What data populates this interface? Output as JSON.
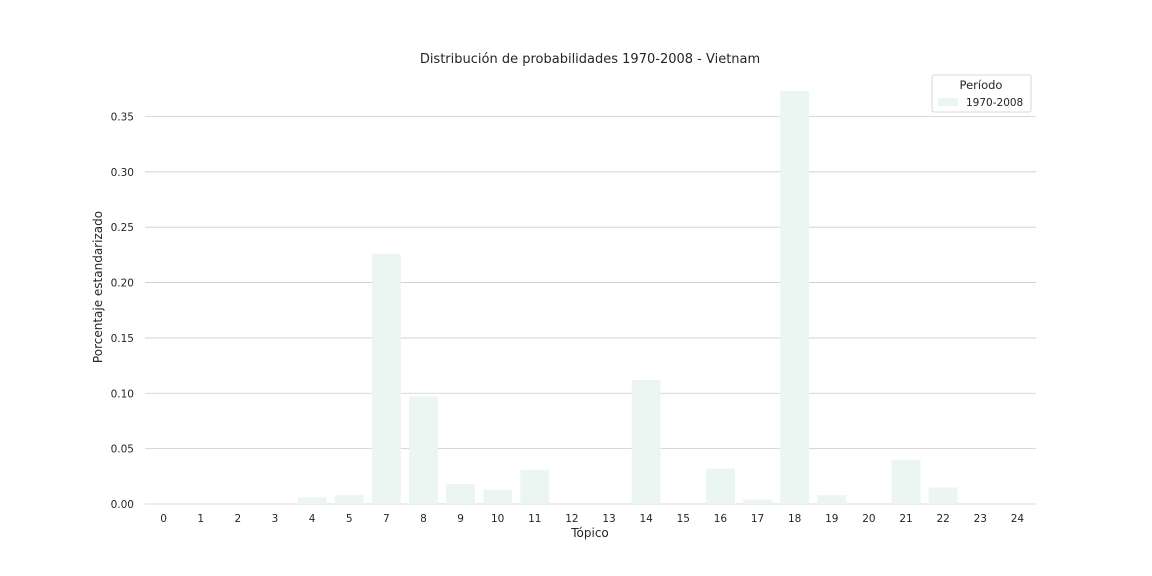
{
  "chart_data": {
    "type": "bar",
    "title": "Distribución de probabilidades 1970-2008 - Vietnam",
    "xlabel": "Tópico",
    "ylabel": "Porcentaje estandarizado",
    "categories": [
      "0",
      "1",
      "2",
      "3",
      "4",
      "5",
      "7",
      "8",
      "9",
      "10",
      "11",
      "12",
      "13",
      "14",
      "15",
      "16",
      "17",
      "18",
      "19",
      "20",
      "21",
      "22",
      "23",
      "24"
    ],
    "series": [
      {
        "name": "1970-2008",
        "values": [
          0,
          0,
          0,
          0,
          0.006,
          0.008,
          0.226,
          0.097,
          0.018,
          0.013,
          0.031,
          0,
          0,
          0.112,
          0,
          0.032,
          0.004,
          0.373,
          0.008,
          0,
          0.04,
          0.015,
          0,
          0
        ]
      }
    ],
    "ylim": [
      0,
      0.373
    ],
    "yticks": [
      "0.00",
      "0.05",
      "0.10",
      "0.15",
      "0.20",
      "0.25",
      "0.30",
      "0.35"
    ],
    "grid": "horizontal",
    "legend": {
      "title": "Período",
      "placement": "top-right"
    },
    "colors": {
      "bar": "#ebf6f2",
      "grid": "#cccccc",
      "text": "#262626"
    }
  }
}
